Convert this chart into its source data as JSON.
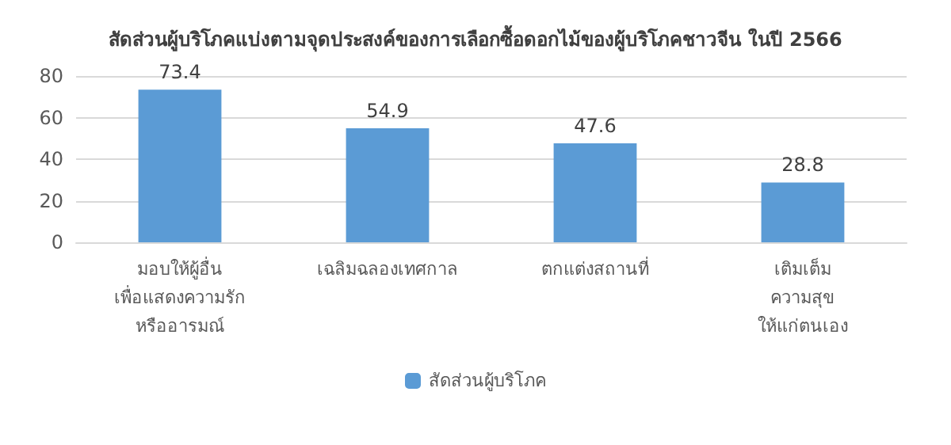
{
  "chart_data": {
    "type": "bar",
    "title": "สัดส่วนผู้บริโภคแบ่งตามจุดประสงค์ของการเลือกซื้อดอกไม้ของผู้บริโภคชาวจีน ในปี 2566",
    "categories": [
      "มอบให้ผู้อื่น\nเพื่อแสดงความรัก\nหรืออารมณ์",
      "เฉลิมฉลองเทศกาล",
      "ตกแต่งสถานที่",
      "เติมเต็ม\nความสุข\nให้แก่ตนเอง"
    ],
    "series": [
      {
        "name": "สัดส่วนผู้บริโภค",
        "color": "#5b9bd5",
        "values": [
          73.4,
          54.9,
          47.6,
          28.8
        ]
      }
    ],
    "ylim": [
      0,
      80
    ],
    "yticks": [
      0,
      20,
      40,
      60,
      80
    ],
    "grid": "y",
    "legend": "bottom",
    "data_labels": true
  }
}
